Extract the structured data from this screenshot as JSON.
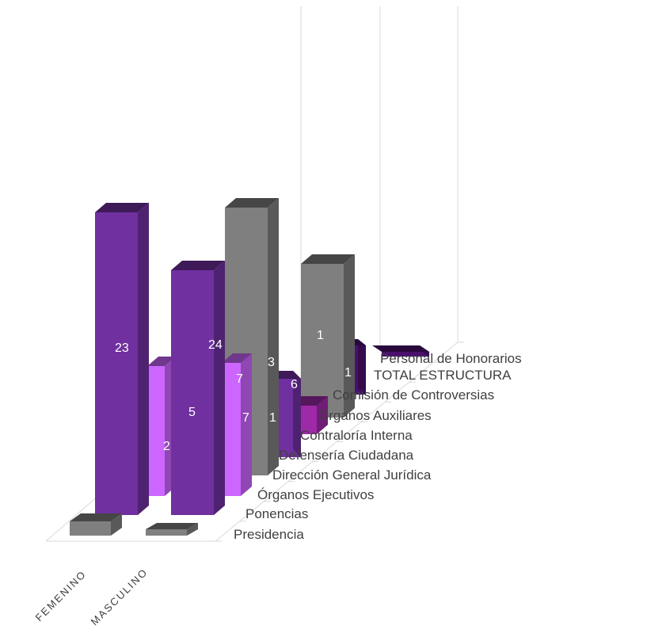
{
  "chart_data": {
    "type": "bar",
    "subtype": "3d-column",
    "categories": [
      "FEMENINO",
      "MASCULINO"
    ],
    "depth_series": [
      "Presidencia",
      "Ponencias",
      "Órganos Ejecutivos",
      "Dirección General Jurídica",
      "Defensería Ciudadana",
      "Contraloría Interna",
      "Órganos Auxiliares",
      "Comisión de Controversias",
      "TOTAL ESTRUCTURA",
      "Personal de Honorarios"
    ],
    "data_labels": [
      "23",
      "2",
      "24",
      "5",
      "7",
      "7",
      "3",
      "6",
      "1",
      "1",
      "1"
    ],
    "grid": "vertical lines on back wall",
    "legend": "none",
    "colors": {
      "purple": "#7030a0",
      "gray": "#7f7f7f",
      "light_purple": "#cc66ff",
      "magenta": "#9e2aa8",
      "dark_purple": "#4a106e"
    }
  }
}
